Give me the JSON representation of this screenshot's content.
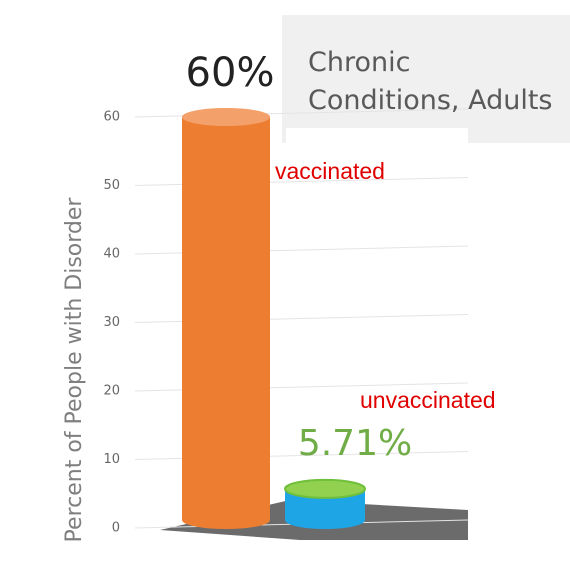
{
  "chart_data": {
    "type": "bar3d",
    "title": "Chronic Conditions, Adults",
    "y_label": "Percent of People with Disorder",
    "categories": [
      "vaccinated",
      "unvaccinated"
    ],
    "values": [
      60,
      5.71
    ],
    "value_labels": [
      "60%",
      "5.71%"
    ],
    "colors": [
      "#ed7d31",
      "#1ea5e6"
    ],
    "ylim": [
      0,
      60
    ],
    "yticks": [
      0,
      10,
      20,
      30,
      40,
      50,
      60
    ],
    "grid": true
  }
}
